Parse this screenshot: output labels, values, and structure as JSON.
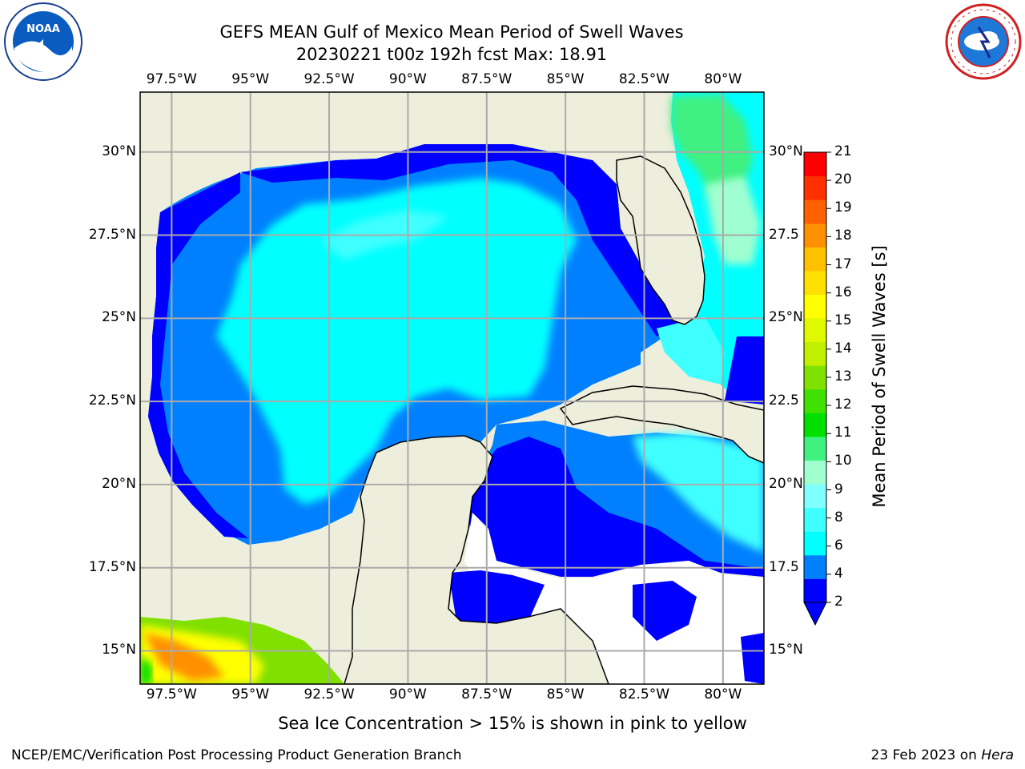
{
  "title": {
    "line1": "GEFS MEAN Gulf of Mexico Mean Period of Swell Waves",
    "line2": "20230221 t00z 192h fcst   Max: 18.91"
  },
  "map": {
    "region": "Gulf of Mexico",
    "lon_range": [
      -98.5,
      -78.7
    ],
    "lat_range": [
      14.0,
      31.8
    ],
    "lon_ticks": [
      "97.5°W",
      "95°W",
      "92.5°W",
      "90°W",
      "87.5°W",
      "85°W",
      "82.5°W",
      "80°W"
    ],
    "lat_ticks_left": [
      "30°N",
      "27.5°N",
      "25°N",
      "22.5°N",
      "20°N",
      "17.5°N",
      "15°N"
    ],
    "lat_ticks_right": [
      "30°N",
      "27.5",
      "25°N",
      "22.5",
      "20°N",
      "17.5",
      "15°N"
    ],
    "gridlines": true,
    "land_color": "#eeeedd"
  },
  "colorbar": {
    "label": "Mean Period of Swell Waves [s]",
    "ticks": [
      "21",
      "20",
      "19",
      "18",
      "17",
      "16",
      "15",
      "14",
      "13",
      "12",
      "11",
      "10",
      "9",
      "8",
      "6",
      "4",
      "2"
    ],
    "colors": [
      "#0000ff",
      "#0080ff",
      "#00ffff",
      "#40ffff",
      "#80ffff",
      "#a0ffd0",
      "#40f080",
      "#00e000",
      "#40e000",
      "#80e000",
      "#c0f000",
      "#e0f800",
      "#ffff00",
      "#ffe000",
      "#ffc000",
      "#ff9000",
      "#ff6000",
      "#ff3000",
      "#ff0000"
    ],
    "under_color": "#0000ff"
  },
  "caption": "Sea Ice Concentration > 15% is shown in pink to yellow",
  "footer": {
    "left": "NCEP/EMC/Verification Post Processing Product Generation Branch",
    "right_prefix": "23 Feb 2023 on ",
    "right_host": "Hera"
  }
}
